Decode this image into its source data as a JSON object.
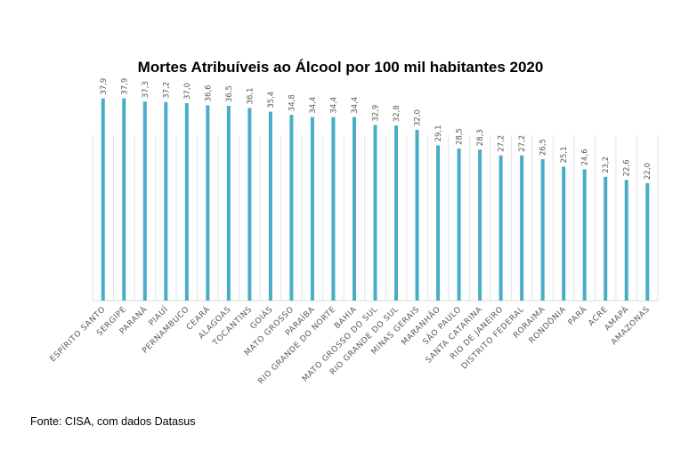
{
  "chart_data": {
    "type": "bar",
    "title": "Mortes Atribuíveis ao Álcool por 100 mil habitantes 2020",
    "categories": [
      "ESPÍRITO SANTO",
      "SERGIPE",
      "PARANÁ",
      "PIAUÍ",
      "PERNAMBUCO",
      "CEARÁ",
      "ALAGOAS",
      "TOCANTINS",
      "GOIÁS",
      "MATO GROSSO",
      "PARAÍBA",
      "RIO GRANDE DO NORTE",
      "BAHIA",
      "MATO GROSSO DO SUL",
      "RIO GRANDE DO SUL",
      "MINAS GERAIS",
      "MARANHÃO",
      "SÃO PAULO",
      "SANTA CATARINA",
      "RIO DE JANEIRO",
      "DISTRITO FEDERAL",
      "RORAIMA",
      "RONDÔNIA",
      "PARÁ",
      "ACRE",
      "AMAPÁ",
      "AMAZONAS"
    ],
    "values": [
      37.9,
      37.9,
      37.3,
      37.2,
      37.0,
      36.6,
      36.5,
      36.1,
      35.4,
      34.8,
      34.4,
      34.4,
      34.4,
      32.9,
      32.8,
      32.0,
      29.1,
      28.5,
      28.3,
      27.2,
      27.2,
      26.5,
      25.1,
      24.6,
      23.2,
      22.6,
      22.0
    ],
    "data_labels": [
      "37,9",
      "37,9",
      "37,3",
      "37,2",
      "37,0",
      "36,6",
      "36,5",
      "36,1",
      "35,4",
      "34,8",
      "34,4",
      "34,4",
      "34,4",
      "32,9",
      "32,8",
      "32,0",
      "29,1",
      "28,5",
      "28,3",
      "27,2",
      "27,2",
      "26,5",
      "25,1",
      "24,6",
      "23,2",
      "22,6",
      "22,0"
    ],
    "ylim": [
      0,
      40
    ],
    "xlabel": "",
    "ylabel": "",
    "bar_color": "#4bacc6",
    "grid": "vertical"
  },
  "source": "Fonte: CISA, com dados Datasus"
}
